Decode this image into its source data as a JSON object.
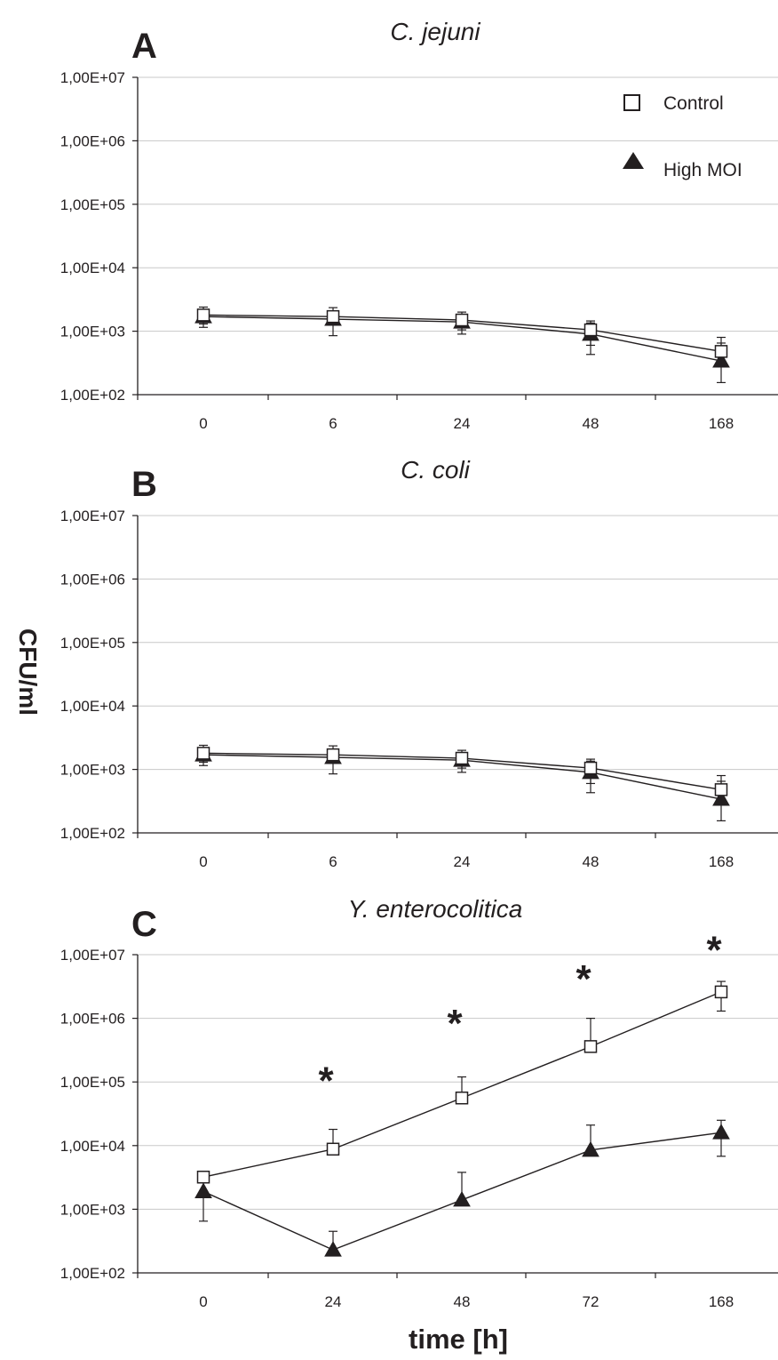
{
  "ylabel": "CFU/ml",
  "xlabel": "time [h]",
  "legend": [
    {
      "label": "Control",
      "marker": "open-square"
    },
    {
      "label": "High MOI",
      "marker": "filled-triangle"
    }
  ],
  "colors": {
    "line": "#231f20",
    "grid": "#c8c8c8",
    "marker_fill_open": "#ffffff",
    "marker_fill_filled": "#231f20"
  },
  "chart_data": [
    {
      "type": "line",
      "panel": "A",
      "title": "C. jejuni",
      "y_scale": "log",
      "ylim": [
        100,
        10000000
      ],
      "y_tick_labels": [
        "1,00E+07",
        "1,00E+06",
        "1,00E+05",
        "1,00E+04",
        "1,00E+03",
        "1,00E+02"
      ],
      "categories": [
        "0",
        "6",
        "24",
        "48",
        "168"
      ],
      "grid": "horizontal",
      "legend_position": "top-right",
      "series": [
        {
          "name": "Control",
          "marker": "open-square",
          "values": [
            1800,
            1700,
            1500,
            1050,
            480
          ],
          "error_upper": [
            2400,
            2350,
            2000,
            1450,
            800
          ],
          "error_lower": [
            1300,
            1250,
            1050,
            600,
            280
          ]
        },
        {
          "name": "High MOI",
          "marker": "filled-triangle",
          "values": [
            1700,
            1550,
            1400,
            900,
            340
          ],
          "error_upper": [
            2200,
            2100,
            1850,
            1350,
            650
          ],
          "error_lower": [
            1150,
            850,
            900,
            430,
            155
          ]
        }
      ],
      "annotations": []
    },
    {
      "type": "line",
      "panel": "B",
      "title": "C. coli",
      "y_scale": "log",
      "ylim": [
        100,
        10000000
      ],
      "y_tick_labels": [
        "1,00E+07",
        "1,00E+06",
        "1,00E+05",
        "1,00E+04",
        "1,00E+03",
        "1,00E+02"
      ],
      "categories": [
        "0",
        "6",
        "24",
        "48",
        "168"
      ],
      "grid": "horizontal",
      "series": [
        {
          "name": "Control",
          "marker": "open-square",
          "values": [
            1800,
            1700,
            1500,
            1050,
            480
          ],
          "error_upper": [
            2400,
            2350,
            2000,
            1450,
            800
          ],
          "error_lower": [
            1300,
            1250,
            1050,
            600,
            280
          ]
        },
        {
          "name": "High MOI",
          "marker": "filled-triangle",
          "values": [
            1700,
            1550,
            1400,
            900,
            340
          ],
          "error_upper": [
            2200,
            2100,
            1850,
            1350,
            650
          ],
          "error_lower": [
            1150,
            850,
            900,
            430,
            155
          ]
        }
      ],
      "annotations": []
    },
    {
      "type": "line",
      "panel": "C",
      "title": "Y. enterocolitica",
      "y_scale": "log",
      "ylim": [
        100,
        10000000
      ],
      "y_tick_labels": [
        "1,00E+07",
        "1,00E+06",
        "1,00E+05",
        "1,00E+04",
        "1,00E+03",
        "1,00E+02"
      ],
      "categories": [
        "0",
        "24",
        "48",
        "72",
        "168"
      ],
      "grid": "horizontal",
      "series": [
        {
          "name": "Control",
          "marker": "open-square",
          "values": [
            3200,
            8800,
            56000,
            360000,
            2600000
          ],
          "error_upper": [
            3200,
            18000,
            120000,
            1000000,
            3800000
          ],
          "error_lower": [
            3200,
            8800,
            56000,
            360000,
            1300000
          ]
        },
        {
          "name": "High MOI",
          "marker": "filled-triangle",
          "values": [
            1900,
            230,
            1400,
            8500,
            16000
          ],
          "error_upper": [
            1900,
            450,
            3800,
            21000,
            25000
          ],
          "error_lower": [
            650,
            230,
            1400,
            8500,
            6800
          ]
        }
      ],
      "annotations": [
        {
          "text": "*",
          "category": "24",
          "y": 150000
        },
        {
          "text": "*",
          "category": "48",
          "y": 1200000
        },
        {
          "text": "*",
          "category": "72",
          "y": 6000000
        },
        {
          "text": "*",
          "category": "168",
          "y": 17000000
        }
      ]
    }
  ]
}
